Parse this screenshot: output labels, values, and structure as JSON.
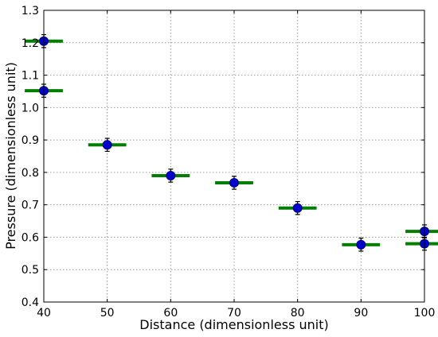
{
  "chart_data": {
    "type": "scatter",
    "title": "",
    "xlabel": "Distance (dimensionless unit)",
    "ylabel": "Pressure (dimensionless unit)",
    "xlim": [
      40,
      100
    ],
    "ylim": [
      0.4,
      1.3
    ],
    "grid": true,
    "xticks": [
      "40",
      "50",
      "60",
      "70",
      "80",
      "90",
      "100"
    ],
    "yticks": [
      "0.4",
      "0.5",
      "0.6",
      "0.7",
      "0.8",
      "0.9",
      "1.0",
      "1.1",
      "1.2",
      "1.3"
    ],
    "series": [
      {
        "points": [
          {
            "x": 40,
            "y": 1.205,
            "xerr": 3,
            "yerr": 0.02
          },
          {
            "x": 40,
            "y": 1.052,
            "xerr": 3,
            "yerr": 0.02
          },
          {
            "x": 50,
            "y": 0.885,
            "xerr": 3,
            "yerr": 0.02
          },
          {
            "x": 60,
            "y": 0.79,
            "xerr": 3,
            "yerr": 0.02
          },
          {
            "x": 70,
            "y": 0.768,
            "xerr": 3,
            "yerr": 0.02
          },
          {
            "x": 80,
            "y": 0.69,
            "xerr": 3,
            "yerr": 0.02
          },
          {
            "x": 90,
            "y": 0.577,
            "xerr": 3,
            "yerr": 0.02
          },
          {
            "x": 100,
            "y": 0.618,
            "xerr": 3,
            "yerr": 0.02
          },
          {
            "x": 100,
            "y": 0.58,
            "xerr": 3,
            "yerr": 0.02
          }
        ]
      }
    ],
    "colors": {
      "marker": "#0000cc",
      "marker_edge": "#000080",
      "xerr_bar": "#007f00",
      "yerr_bar": "#000000",
      "grid": "#9a9a9a"
    }
  }
}
